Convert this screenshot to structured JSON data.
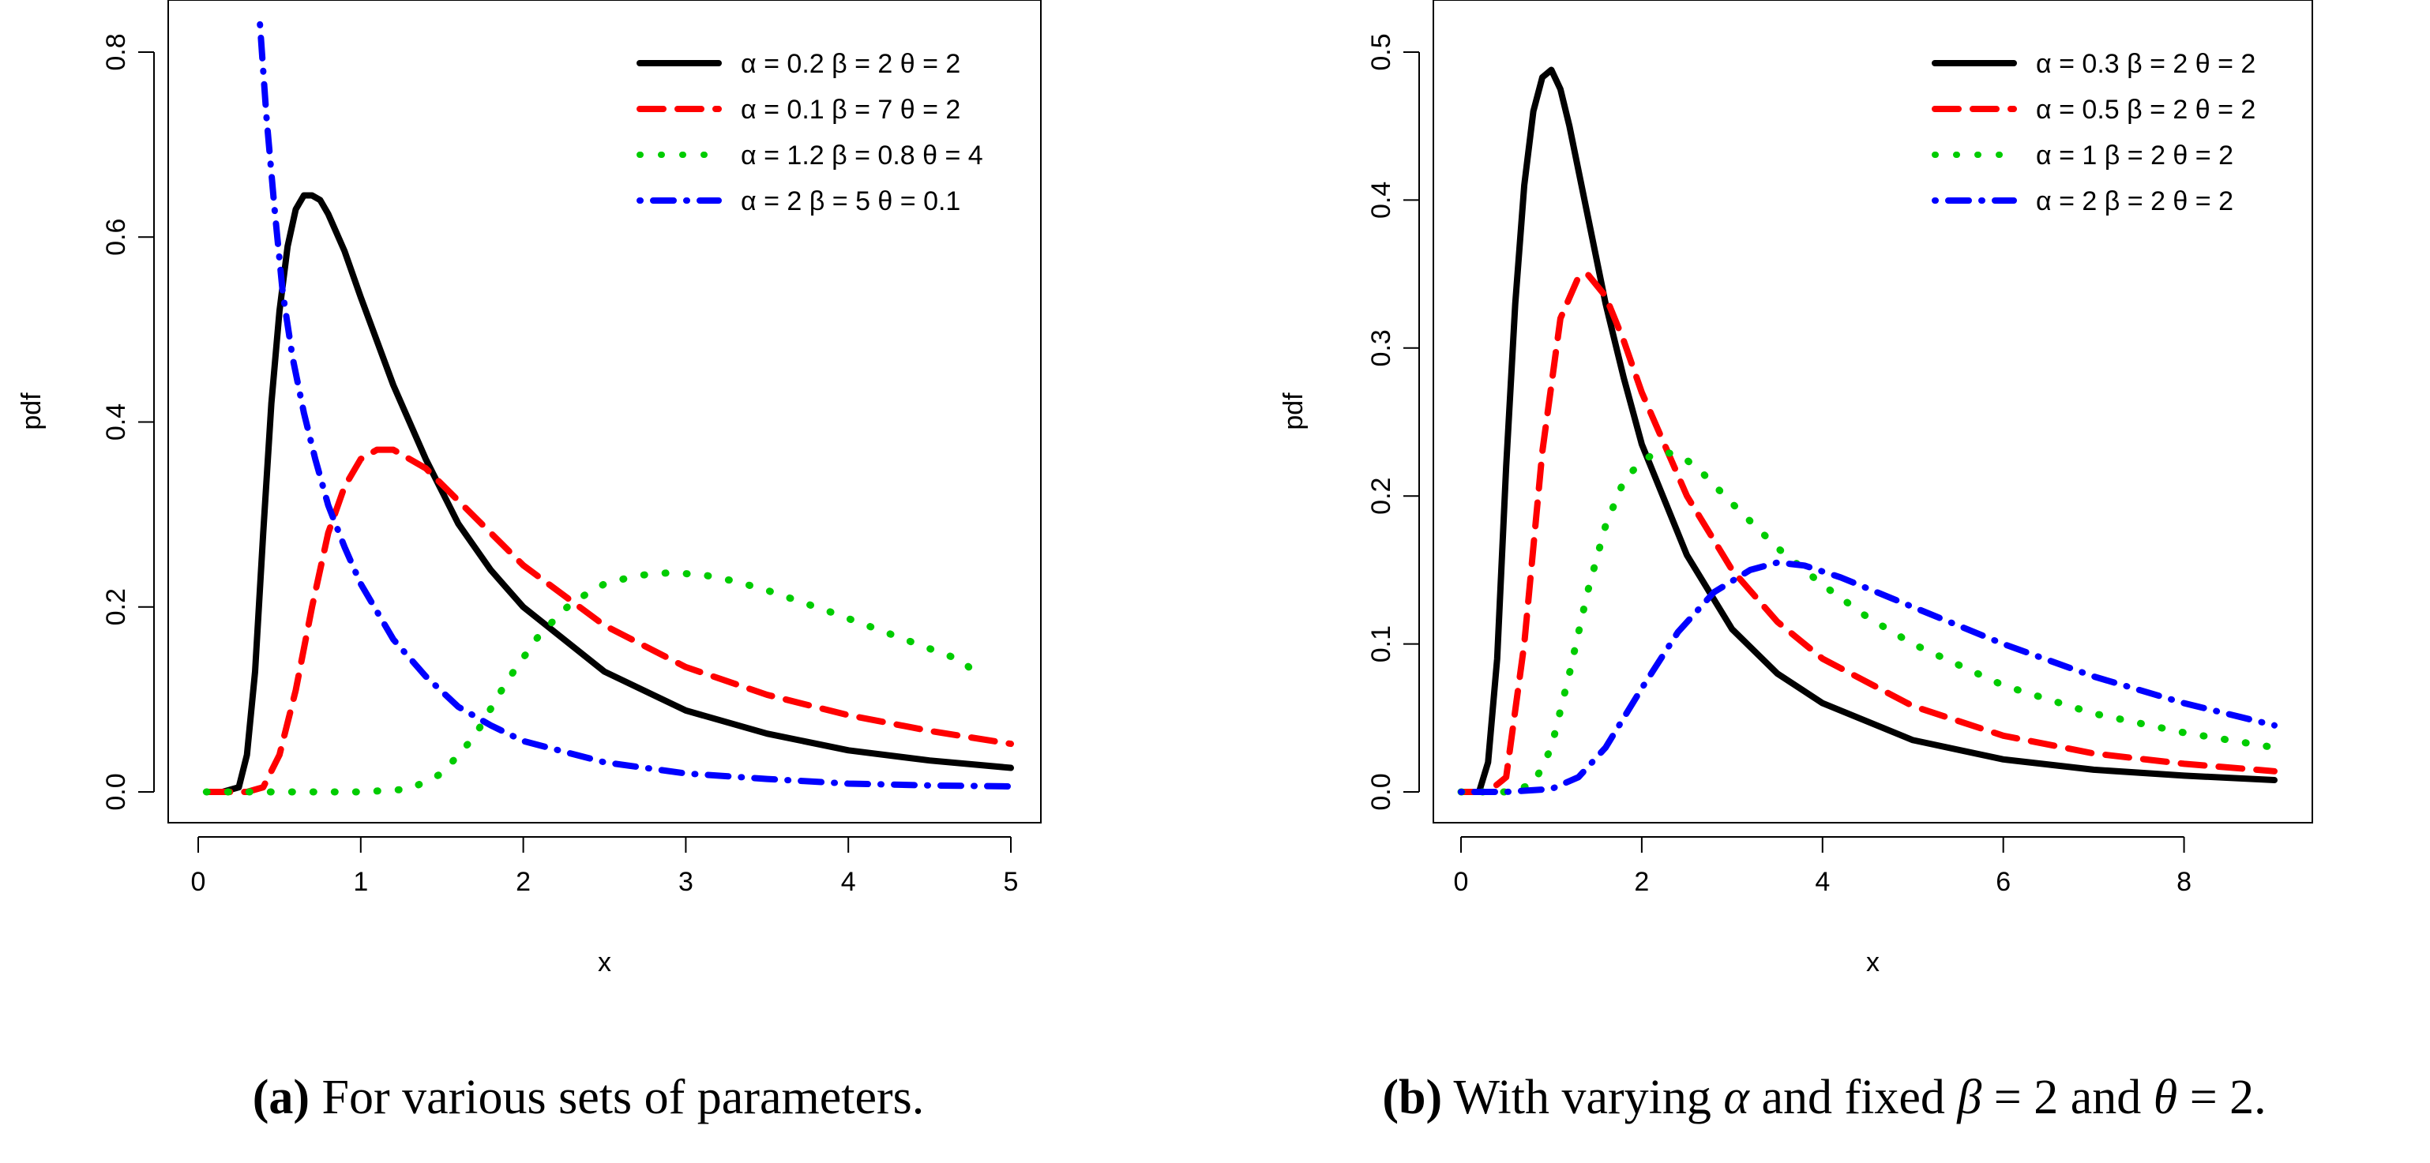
{
  "chart_data": [
    {
      "type": "line",
      "panel_label": "(a)",
      "caption": "For various sets of parameters.",
      "xlabel": "x",
      "ylabel": "pdf",
      "xlim": [
        0,
        5
      ],
      "ylim": [
        0,
        0.8
      ],
      "xticks": [
        "0",
        "1",
        "2",
        "3",
        "4",
        "5"
      ],
      "yticks": [
        "0.0",
        "0.2",
        "0.4",
        "0.6",
        "0.8"
      ],
      "legend_position": "top-right",
      "series": [
        {
          "name": "α = 0.2  β = 2  θ = 2",
          "color": "#000000",
          "style": "solid",
          "x": [
            0.05,
            0.15,
            0.25,
            0.3,
            0.35,
            0.4,
            0.45,
            0.5,
            0.55,
            0.6,
            0.65,
            0.7,
            0.75,
            0.8,
            0.9,
            1.0,
            1.2,
            1.4,
            1.6,
            1.8,
            2.0,
            2.5,
            3.0,
            3.5,
            4.0,
            4.5,
            5.0
          ],
          "y": [
            0.0,
            0.0,
            0.005,
            0.04,
            0.13,
            0.28,
            0.42,
            0.52,
            0.59,
            0.63,
            0.645,
            0.645,
            0.64,
            0.625,
            0.585,
            0.535,
            0.44,
            0.36,
            0.29,
            0.24,
            0.2,
            0.13,
            0.088,
            0.063,
            0.045,
            0.034,
            0.026
          ]
        },
        {
          "name": "α = 0.1  β = 7  θ = 2",
          "color": "#ff0000",
          "style": "dashed",
          "x": [
            0.05,
            0.2,
            0.3,
            0.4,
            0.5,
            0.6,
            0.7,
            0.8,
            0.9,
            1.0,
            1.1,
            1.2,
            1.4,
            1.6,
            1.8,
            2.0,
            2.5,
            3.0,
            3.5,
            4.0,
            4.5,
            5.0
          ],
          "y": [
            0.0,
            0.0,
            0.0,
            0.005,
            0.04,
            0.11,
            0.2,
            0.28,
            0.33,
            0.36,
            0.37,
            0.37,
            0.35,
            0.315,
            0.28,
            0.245,
            0.18,
            0.135,
            0.105,
            0.083,
            0.066,
            0.052
          ]
        },
        {
          "name": "α = 1.2  β = 0.8  θ = 4",
          "color": "#00cc00",
          "style": "dotted",
          "x": [
            0.05,
            0.5,
            1.0,
            1.3,
            1.5,
            1.7,
            1.9,
            2.1,
            2.3,
            2.5,
            2.7,
            2.9,
            3.1,
            3.3,
            3.5,
            3.7,
            3.9,
            4.1,
            4.3,
            4.5,
            4.7,
            4.8
          ],
          "y": [
            0.0,
            0.0,
            0.0,
            0.003,
            0.02,
            0.06,
            0.12,
            0.17,
            0.205,
            0.225,
            0.234,
            0.237,
            0.235,
            0.228,
            0.218,
            0.206,
            0.194,
            0.181,
            0.168,
            0.155,
            0.142,
            0.125
          ]
        },
        {
          "name": "α = 2  β = 5  θ = 0.1",
          "color": "#0000ff",
          "style": "dotdash",
          "x": [
            0.38,
            0.42,
            0.47,
            0.52,
            0.58,
            0.65,
            0.72,
            0.8,
            0.9,
            1.0,
            1.2,
            1.4,
            1.6,
            1.8,
            2.0,
            2.5,
            3.0,
            3.5,
            4.0,
            4.5,
            5.0
          ],
          "y": [
            0.83,
            0.73,
            0.63,
            0.54,
            0.47,
            0.41,
            0.36,
            0.31,
            0.265,
            0.225,
            0.165,
            0.125,
            0.092,
            0.072,
            0.055,
            0.032,
            0.02,
            0.014,
            0.009,
            0.007,
            0.006
          ]
        }
      ]
    },
    {
      "type": "line",
      "panel_label": "(b)",
      "caption_parts": [
        "With varying ",
        "α",
        " and fixed ",
        "β",
        " = 2 and ",
        "θ",
        " = 2."
      ],
      "xlabel": "x",
      "ylabel": "pdf",
      "xlim": [
        0,
        9
      ],
      "ylim": [
        0,
        0.5
      ],
      "xticks": [
        "0",
        "2",
        "4",
        "6",
        "8"
      ],
      "yticks": [
        "0.0",
        "0.1",
        "0.2",
        "0.3",
        "0.4",
        "0.5"
      ],
      "legend_position": "top-right",
      "series": [
        {
          "name": "α = 0.3  β = 2  θ = 2",
          "color": "#000000",
          "style": "solid",
          "x": [
            0.0,
            0.2,
            0.3,
            0.4,
            0.5,
            0.6,
            0.7,
            0.8,
            0.9,
            1.0,
            1.1,
            1.2,
            1.4,
            1.6,
            1.8,
            2.0,
            2.5,
            3.0,
            3.5,
            4.0,
            5.0,
            6.0,
            7.0,
            8.0,
            9.0
          ],
          "y": [
            0.0,
            0.0,
            0.02,
            0.09,
            0.22,
            0.33,
            0.41,
            0.46,
            0.483,
            0.488,
            0.475,
            0.45,
            0.39,
            0.33,
            0.28,
            0.235,
            0.16,
            0.11,
            0.08,
            0.06,
            0.035,
            0.022,
            0.015,
            0.011,
            0.008
          ]
        },
        {
          "name": "α = 0.5  β = 2  θ = 2",
          "color": "#ff0000",
          "style": "dashed",
          "x": [
            0.0,
            0.3,
            0.5,
            0.7,
            0.9,
            1.1,
            1.3,
            1.4,
            1.6,
            1.8,
            2.0,
            2.5,
            3.0,
            3.5,
            4.0,
            5.0,
            6.0,
            7.0,
            8.0,
            9.0
          ],
          "y": [
            0.0,
            0.0,
            0.01,
            0.1,
            0.23,
            0.32,
            0.348,
            0.35,
            0.335,
            0.305,
            0.27,
            0.2,
            0.15,
            0.115,
            0.09,
            0.058,
            0.038,
            0.026,
            0.019,
            0.014
          ]
        },
        {
          "name": "α = 1  β = 2  θ = 2",
          "color": "#00cc00",
          "style": "dotted",
          "x": [
            0.0,
            0.5,
            0.8,
            1.0,
            1.2,
            1.4,
            1.6,
            1.8,
            2.0,
            2.2,
            2.4,
            2.6,
            3.0,
            3.5,
            4.0,
            4.5,
            5.0,
            6.0,
            7.0,
            8.0,
            9.0
          ],
          "y": [
            0.0,
            0.0,
            0.005,
            0.03,
            0.08,
            0.135,
            0.18,
            0.21,
            0.224,
            0.23,
            0.228,
            0.22,
            0.195,
            0.165,
            0.14,
            0.118,
            0.1,
            0.072,
            0.053,
            0.04,
            0.03
          ]
        },
        {
          "name": "α = 2  β = 2  θ = 2",
          "color": "#0000ff",
          "style": "dotdash",
          "x": [
            0.0,
            0.5,
            1.0,
            1.3,
            1.6,
            2.0,
            2.4,
            2.8,
            3.2,
            3.5,
            3.8,
            4.2,
            4.6,
            5.0,
            6.0,
            7.0,
            8.0,
            9.0
          ],
          "y": [
            0.0,
            0.0,
            0.002,
            0.01,
            0.03,
            0.07,
            0.108,
            0.135,
            0.15,
            0.155,
            0.153,
            0.145,
            0.135,
            0.125,
            0.1,
            0.078,
            0.06,
            0.045
          ]
        }
      ]
    }
  ]
}
